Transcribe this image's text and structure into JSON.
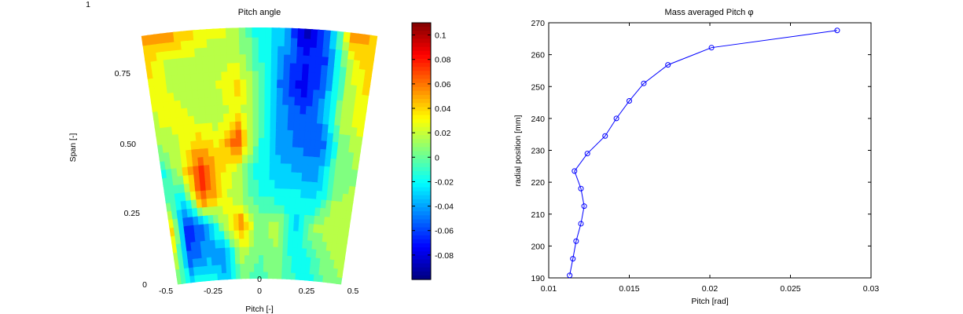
{
  "chart_data": [
    {
      "type": "heatmap",
      "title": "Pitch angle",
      "xlabel": "Pitch [-]",
      "ylabel": "Span [-]",
      "corner_label": "1",
      "x_ticks": [
        "-0.5",
        "-0.25",
        "0",
        "0.25",
        "0.5"
      ],
      "y_ticks": [
        "0",
        "0.25",
        "0.50",
        "0.75"
      ],
      "colormap": "jet",
      "colorbar": {
        "range": [
          -0.1,
          0.11
        ],
        "ticks": [
          0.1,
          0.08,
          0.06,
          0.04,
          0.02,
          0,
          -0.02,
          -0.04,
          -0.06,
          -0.08
        ],
        "tick_labels": [
          "0.1",
          "0.08",
          "0.06",
          "0.04",
          "0.02",
          "0",
          "-0.02",
          "-0.04",
          "-0.06",
          "-0.08"
        ]
      },
      "field": {
        "span_rows": [
          0.0,
          0.1,
          0.2,
          0.3,
          0.4,
          0.5,
          0.6,
          0.7,
          0.8,
          0.9
        ],
        "pitch_cols": [
          -0.5,
          -0.4,
          -0.3,
          -0.2,
          -0.1,
          0.0,
          0.1,
          0.2,
          0.3,
          0.4,
          0.5
        ],
        "values": [
          [
            0.005,
            -0.02,
            -0.01,
            -0.03,
            0.0,
            -0.01,
            0.005,
            -0.01,
            -0.02,
            0.0,
            0.01
          ],
          [
            0.03,
            -0.06,
            -0.04,
            -0.05,
            0.02,
            0.0,
            0.01,
            -0.02,
            -0.01,
            0.01,
            0.015
          ],
          [
            0.06,
            -0.07,
            -0.05,
            0.01,
            0.06,
            0.0,
            0.02,
            -0.03,
            0.01,
            0.02,
            0.015
          ],
          [
            0.0,
            -0.03,
            0.07,
            0.03,
            0.01,
            -0.01,
            -0.02,
            -0.02,
            -0.03,
            0.01,
            0.015
          ],
          [
            -0.02,
            0.02,
            0.08,
            0.04,
            0.02,
            -0.02,
            -0.03,
            -0.04,
            -0.04,
            0.0,
            0.01
          ],
          [
            0.01,
            0.02,
            0.04,
            0.03,
            0.07,
            -0.01,
            -0.04,
            -0.05,
            -0.06,
            0.0,
            0.02
          ],
          [
            0.02,
            0.03,
            0.02,
            0.01,
            0.03,
            0.0,
            -0.04,
            -0.06,
            -0.04,
            0.02,
            0.03
          ],
          [
            0.03,
            0.02,
            0.01,
            0.02,
            0.04,
            0.0,
            -0.05,
            -0.08,
            -0.05,
            0.01,
            0.04
          ],
          [
            0.04,
            0.02,
            0.02,
            0.01,
            0.02,
            -0.01,
            -0.04,
            -0.07,
            -0.06,
            0.02,
            0.05
          ],
          [
            0.05,
            0.06,
            0.04,
            0.03,
            0.02,
            -0.02,
            -0.03,
            -0.09,
            -0.05,
            0.06,
            0.04
          ]
        ]
      }
    },
    {
      "type": "line",
      "title": "Mass averaged Pitch φ",
      "xlabel": "Pitch [rad]",
      "ylabel": "radial position [mm]",
      "xlim": [
        0.01,
        0.03
      ],
      "ylim": [
        190,
        270
      ],
      "x_ticks": [
        0.01,
        0.015,
        0.02,
        0.025,
        0.03
      ],
      "y_ticks": [
        190,
        200,
        210,
        220,
        230,
        240,
        250,
        260,
        270
      ],
      "line_color": "#0000ff",
      "marker": "circle",
      "series": [
        {
          "x": [
            0.0113,
            0.0115,
            0.0117,
            0.012,
            0.0122,
            0.012,
            0.0116,
            0.0124,
            0.0135,
            0.0142,
            0.015,
            0.0159,
            0.0174,
            0.0201,
            0.0279
          ],
          "y": [
            190.8,
            196.0,
            201.5,
            207.0,
            212.5,
            218.0,
            223.5,
            229.0,
            234.5,
            240.0,
            245.5,
            251.0,
            256.8,
            262.2,
            267.6
          ]
        }
      ]
    }
  ]
}
